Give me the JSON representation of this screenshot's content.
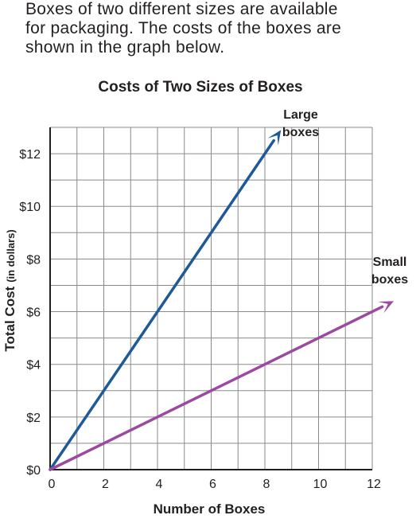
{
  "intro": {
    "lines": [
      "Boxes of two different sizes are available",
      "for packaging.  The costs of the boxes are",
      "shown in the graph below."
    ]
  },
  "chart_data": {
    "type": "line",
    "title": "Costs of Two Sizes of Boxes",
    "xlabel": "Number of Boxes",
    "ylabel": "Total Cost",
    "ylabel_unit": "(in dollars)",
    "xlim": [
      0,
      12
    ],
    "ylim": [
      0,
      13
    ],
    "x_ticks": [
      {
        "value": 0,
        "label": "0"
      },
      {
        "value": 2,
        "label": "2"
      },
      {
        "value": 4,
        "label": "4"
      },
      {
        "value": 6,
        "label": "6"
      },
      {
        "value": 8,
        "label": "8"
      },
      {
        "value": 10,
        "label": "10"
      },
      {
        "value": 12,
        "label": "12"
      }
    ],
    "y_ticks": [
      {
        "value": 0,
        "label": "$0"
      },
      {
        "value": 2,
        "label": "$2"
      },
      {
        "value": 4,
        "label": "$4"
      },
      {
        "value": 6,
        "label": "$6"
      },
      {
        "value": 8,
        "label": "$8"
      },
      {
        "value": 10,
        "label": "$10"
      },
      {
        "value": 12,
        "label": "$12"
      }
    ],
    "grid": true,
    "series": [
      {
        "name_lines": [
          "Large",
          "boxes"
        ],
        "color": "#1f5a96",
        "points": [
          [
            0,
            0
          ],
          [
            8.6,
            12.9
          ]
        ],
        "arrow": true
      },
      {
        "name_lines": [
          "Small",
          "boxes"
        ],
        "color": "#9b4a9f",
        "points": [
          [
            0,
            0
          ],
          [
            12.8,
            6.4
          ]
        ],
        "arrow": true
      }
    ]
  }
}
